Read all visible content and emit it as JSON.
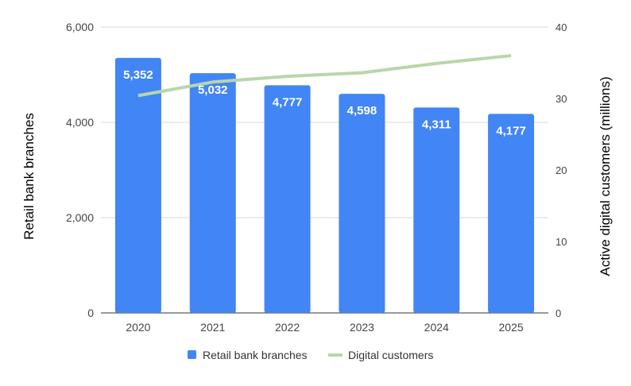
{
  "chart_data": {
    "type": "bar+line",
    "title": "",
    "categories": [
      "2020",
      "2021",
      "2022",
      "2023",
      "2024",
      "2025"
    ],
    "series": [
      {
        "name": "Retail bank branches",
        "type": "bar",
        "axis": "left",
        "values": [
          5352,
          5032,
          4777,
          4598,
          4311,
          4177
        ],
        "labels": [
          "5,352",
          "5,032",
          "4,777",
          "4,598",
          "4,311",
          "4,177"
        ]
      },
      {
        "name": "Digital customers",
        "type": "line",
        "axis": "right",
        "values": [
          30.4,
          32.3,
          33.1,
          33.6,
          34.9,
          36.0
        ]
      }
    ],
    "ylabel": "Retail bank branches",
    "y2label": "Active digital customers (millions)",
    "ylim": [
      0,
      6000
    ],
    "y2lim": [
      0,
      40
    ],
    "yticks": [
      0,
      2000,
      4000,
      6000
    ],
    "ytick_labels": [
      "0",
      "2,000",
      "4,000",
      "6,000"
    ],
    "y2ticks": [
      0,
      10,
      20,
      30,
      40
    ],
    "y2tick_labels": [
      "0",
      "10",
      "20",
      "30",
      "40"
    ],
    "grid": true,
    "legend": "bottom",
    "colors": {
      "bar": "#4285f4",
      "line": "#b7d7a8",
      "grid": "#d9d9d9",
      "axis": "#333333"
    }
  }
}
